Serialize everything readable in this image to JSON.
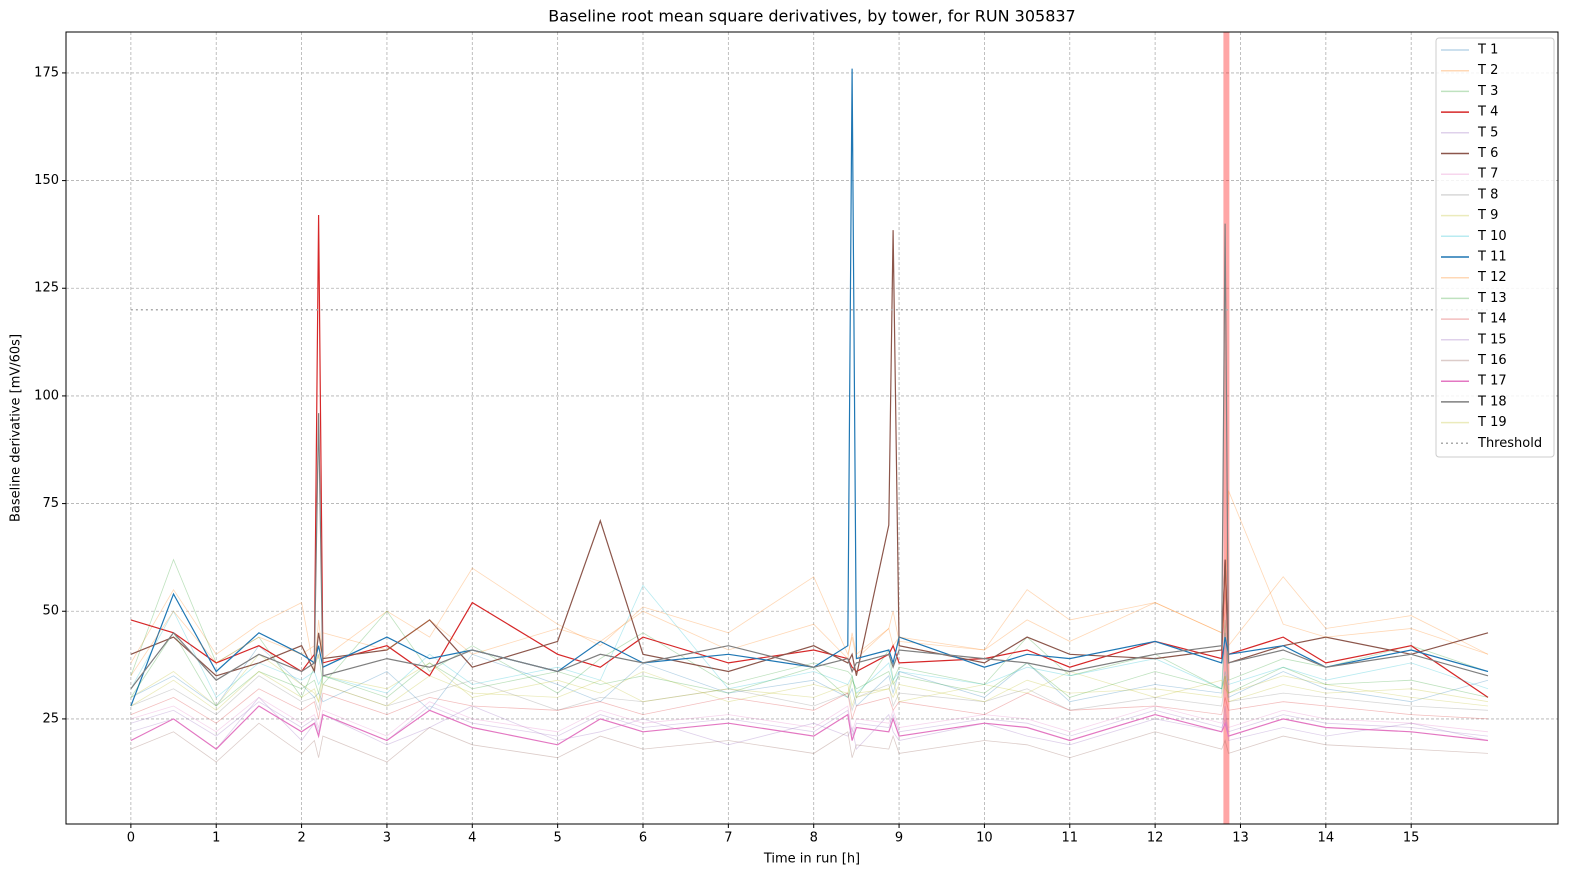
{
  "chart_data": {
    "type": "line",
    "title": "Baseline root mean square derivatives, by tower, for RUN 305837",
    "xlabel": "Time in run [h]",
    "ylabel": "Baseline derivative [mV/60s]",
    "xlim": [
      -0.76,
      16.72
    ],
    "ylim": [
      0.6,
      184.5
    ],
    "xticks": [
      0,
      1,
      2,
      3,
      4,
      5,
      6,
      7,
      8,
      9,
      10,
      11,
      12,
      13,
      14,
      15
    ],
    "yticks": [
      25,
      50,
      75,
      100,
      125,
      150,
      175
    ],
    "grid": true,
    "legend": "upper right",
    "x": [
      0,
      0.5,
      1,
      1.5,
      2,
      2.15,
      2.2,
      2.25,
      3,
      3.5,
      4,
      5,
      5.5,
      6,
      7,
      8,
      8.4,
      8.45,
      8.5,
      8.88,
      8.93,
      9,
      10,
      10.5,
      11,
      12,
      12.78,
      12.82,
      12.86,
      13.5,
      14,
      15,
      15.9
    ],
    "series": [
      {
        "name": "T 1",
        "color": "#1f77b4",
        "opacity": 0.3,
        "values": [
          30,
          35,
          28,
          42,
          33,
          30,
          31,
          29,
          36,
          27,
          40,
          33,
          29,
          38,
          31,
          34,
          30,
          32,
          28,
          35,
          31,
          36,
          30,
          38,
          29,
          33,
          31,
          45,
          30,
          36,
          32,
          29,
          34
        ]
      },
      {
        "name": "T 2",
        "color": "#ff7f0e",
        "opacity": 0.3,
        "values": [
          38,
          55,
          40,
          47,
          52,
          36,
          48,
          39,
          50,
          44,
          60,
          47,
          42,
          51,
          45,
          58,
          40,
          44,
          39,
          46,
          50,
          43,
          41,
          55,
          48,
          52,
          45,
          60,
          42,
          58,
          46,
          49,
          40
        ]
      },
      {
        "name": "T 3",
        "color": "#2ca02c",
        "opacity": 0.3,
        "values": [
          35,
          62,
          38,
          44,
          30,
          37,
          40,
          33,
          50,
          36,
          42,
          31,
          39,
          45,
          33,
          38,
          36,
          35,
          30,
          41,
          34,
          37,
          33,
          44,
          35,
          40,
          32,
          48,
          34,
          39,
          37,
          42,
          36
        ]
      },
      {
        "name": "T 4",
        "color": "#d62728",
        "opacity": 1,
        "values": [
          48,
          45,
          38,
          42,
          36,
          40,
          142,
          38,
          42,
          35,
          52,
          40,
          37,
          44,
          38,
          41,
          39,
          37,
          36,
          40,
          42,
          38,
          39,
          41,
          37,
          43,
          39,
          62,
          40,
          44,
          38,
          42,
          30
        ]
      },
      {
        "name": "T 5",
        "color": "#9467bd",
        "opacity": 0.3,
        "values": [
          22,
          25,
          18,
          30,
          20,
          24,
          21,
          26,
          19,
          23,
          28,
          20,
          22,
          25,
          19,
          24,
          21,
          23,
          18,
          26,
          22,
          20,
          24,
          21,
          19,
          25,
          22,
          28,
          20,
          23,
          21,
          24,
          20
        ]
      },
      {
        "name": "T 6",
        "color": "#8c564b",
        "opacity": 1,
        "values": [
          40,
          44,
          35,
          38,
          42,
          36,
          45,
          39,
          41,
          48,
          37,
          43,
          71,
          40,
          36,
          42,
          38,
          40,
          35,
          70,
          138.5,
          42,
          38,
          44,
          40,
          39,
          41,
          62,
          38,
          42,
          44,
          40,
          45
        ]
      },
      {
        "name": "T 7",
        "color": "#e377c2",
        "opacity": 0.3,
        "values": [
          25,
          28,
          22,
          30,
          24,
          26,
          23,
          27,
          21,
          29,
          25,
          22,
          27,
          24,
          26,
          23,
          28,
          22,
          25,
          24,
          27,
          23,
          26,
          25,
          22,
          28,
          24,
          26,
          23,
          27,
          25,
          24,
          22
        ]
      },
      {
        "name": "T 8",
        "color": "#7f7f7f",
        "opacity": 0.3,
        "values": [
          28,
          32,
          26,
          35,
          29,
          30,
          27,
          33,
          28,
          31,
          34,
          27,
          30,
          29,
          32,
          28,
          31,
          27,
          30,
          33,
          28,
          31,
          29,
          32,
          27,
          30,
          28,
          34,
          29,
          31,
          30,
          28,
          27
        ]
      },
      {
        "name": "T 9",
        "color": "#bcbd22",
        "opacity": 0.3,
        "values": [
          30,
          36,
          28,
          40,
          33,
          31,
          29,
          35,
          32,
          38,
          30,
          34,
          31,
          36,
          29,
          33,
          31,
          35,
          30,
          32,
          34,
          29,
          33,
          31,
          36,
          30,
          34,
          32,
          31,
          35,
          33,
          30,
          28
        ]
      },
      {
        "name": "T 10",
        "color": "#17becf",
        "opacity": 0.3,
        "values": [
          32,
          50,
          30,
          38,
          34,
          36,
          33,
          35,
          31,
          40,
          33,
          37,
          34,
          56,
          32,
          36,
          33,
          35,
          31,
          38,
          34,
          36,
          33,
          37,
          35,
          39,
          32,
          36,
          33,
          37,
          34,
          38,
          32
        ]
      },
      {
        "name": "T 11",
        "color": "#1f77b4",
        "opacity": 1,
        "values": [
          28,
          54,
          36,
          45,
          40,
          38,
          42,
          37,
          44,
          39,
          41,
          36,
          43,
          38,
          40,
          37,
          42,
          176,
          39,
          41,
          38,
          44,
          37,
          40,
          39,
          43,
          38,
          44,
          40,
          42,
          37,
          41,
          36
        ]
      },
      {
        "name": "T 12",
        "color": "#ff7f0e",
        "opacity": 0.3,
        "values": [
          35,
          50,
          38,
          44,
          40,
          42,
          39,
          45,
          41,
          48,
          40,
          46,
          43,
          50,
          41,
          47,
          39,
          45,
          40,
          46,
          42,
          44,
          41,
          48,
          43,
          52,
          45,
          50,
          78,
          47,
          44,
          46,
          40
        ]
      },
      {
        "name": "T 13",
        "color": "#2ca02c",
        "opacity": 0.3,
        "values": [
          30,
          45,
          28,
          36,
          32,
          34,
          31,
          35,
          30,
          38,
          32,
          36,
          33,
          35,
          31,
          37,
          30,
          34,
          32,
          36,
          33,
          35,
          31,
          38,
          30,
          36,
          32,
          35,
          31,
          37,
          33,
          34,
          30
        ]
      },
      {
        "name": "T 14",
        "color": "#d62728",
        "opacity": 0.3,
        "values": [
          26,
          30,
          24,
          32,
          27,
          29,
          25,
          31,
          26,
          30,
          28,
          27,
          29,
          26,
          30,
          27,
          31,
          25,
          28,
          30,
          27,
          29,
          26,
          31,
          27,
          28,
          26,
          30,
          27,
          29,
          28,
          26,
          25
        ]
      },
      {
        "name": "T 15",
        "color": "#9467bd",
        "opacity": 0.3,
        "values": [
          24,
          27,
          21,
          29,
          23,
          25,
          22,
          26,
          20,
          28,
          24,
          21,
          26,
          23,
          25,
          22,
          27,
          21,
          24,
          23,
          26,
          22,
          25,
          24,
          21,
          27,
          23,
          25,
          22,
          26,
          24,
          23,
          21
        ]
      },
      {
        "name": "T 16",
        "color": "#8c564b",
        "opacity": 0.3,
        "values": [
          18,
          22,
          15,
          24,
          17,
          20,
          16,
          21,
          15,
          23,
          19,
          16,
          21,
          18,
          20,
          17,
          22,
          16,
          19,
          18,
          21,
          17,
          20,
          19,
          16,
          22,
          18,
          20,
          17,
          21,
          19,
          18,
          17
        ]
      },
      {
        "name": "T 17",
        "color": "#e377c2",
        "opacity": 1,
        "values": [
          20,
          25,
          18,
          28,
          22,
          24,
          21,
          26,
          20,
          27,
          23,
          19,
          25,
          22,
          24,
          21,
          26,
          20,
          23,
          22,
          25,
          21,
          24,
          23,
          20,
          26,
          22,
          24,
          21,
          25,
          23,
          22,
          20
        ]
      },
      {
        "name": "T 18",
        "color": "#7f7f7f",
        "opacity": 1,
        "values": [
          32,
          45,
          34,
          40,
          36,
          38,
          96,
          35,
          39,
          37,
          41,
          36,
          40,
          38,
          42,
          37,
          39,
          36,
          38,
          40,
          37,
          41,
          39,
          38,
          36,
          40,
          42,
          140,
          38,
          41,
          37,
          40,
          35
        ]
      },
      {
        "name": "T 19",
        "color": "#bcbd22",
        "opacity": 0.3,
        "values": [
          28,
          34,
          27,
          36,
          30,
          32,
          29,
          33,
          28,
          35,
          31,
          30,
          34,
          29,
          32,
          30,
          33,
          28,
          31,
          32,
          30,
          33,
          29,
          34,
          31,
          32,
          30,
          35,
          29,
          33,
          31,
          32,
          29
        ]
      }
    ],
    "threshold": {
      "name": "Threshold",
      "value": 120,
      "x": [
        0,
        15.9
      ],
      "color": "#aaaaaa"
    },
    "highlight_span": {
      "x": [
        12.8,
        12.87
      ],
      "color": "#ff0000",
      "opacity": 0.35
    }
  }
}
